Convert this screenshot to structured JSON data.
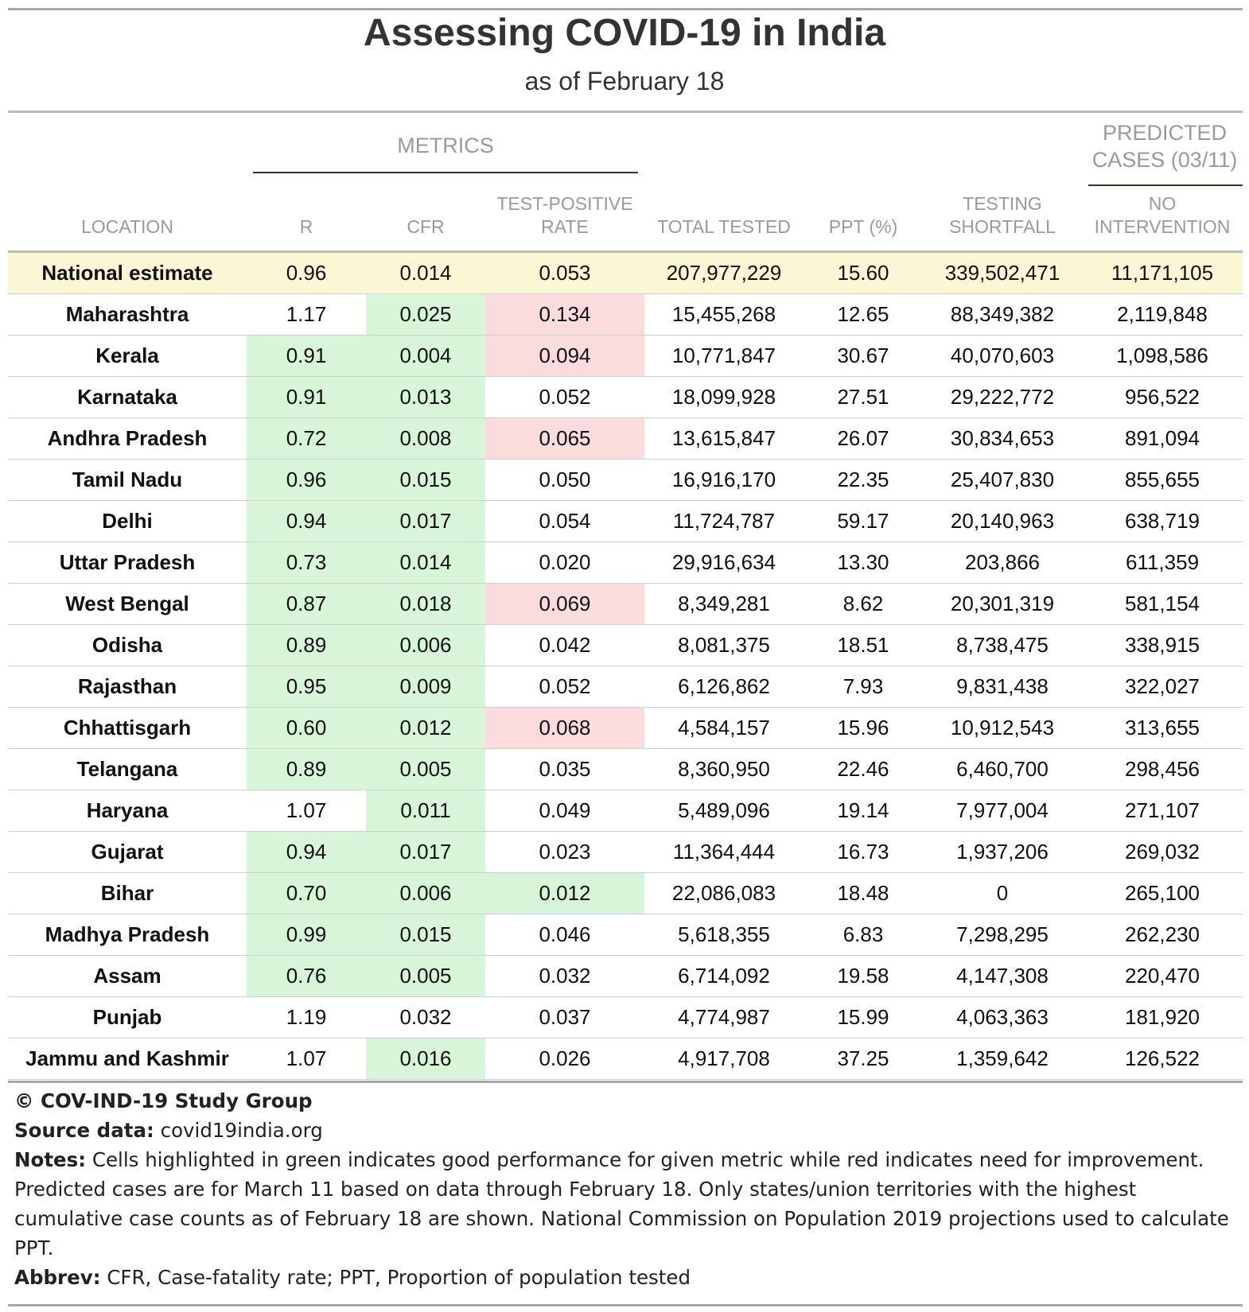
{
  "chart_data": {
    "type": "table",
    "title": "Assessing COVID-19 in India",
    "subtitle": "as of February 18",
    "column_groups": {
      "metrics": "METRICS",
      "predicted": "PREDICTED CASES (03/11)"
    },
    "columns": [
      "LOCATION",
      "R",
      "CFR",
      "TEST-POSITIVE RATE",
      "TOTAL TESTED",
      "PPT (%)",
      "TESTING SHORTFALL",
      "NO INTERVENTION"
    ],
    "rows": [
      {
        "location": "National estimate",
        "r": "0.96",
        "cfr": "0.014",
        "tpr": "0.053",
        "total_tested": "207,977,229",
        "ppt": "15.60",
        "shortfall": "339,502,471",
        "no_intervention": "11,171,105",
        "highlight": {
          "r": "",
          "cfr": "",
          "tpr": ""
        }
      },
      {
        "location": "Maharashtra",
        "r": "1.17",
        "cfr": "0.025",
        "tpr": "0.134",
        "total_tested": "15,455,268",
        "ppt": "12.65",
        "shortfall": "88,349,382",
        "no_intervention": "2,119,848",
        "highlight": {
          "r": "",
          "cfr": "good",
          "tpr": "bad"
        }
      },
      {
        "location": "Kerala",
        "r": "0.91",
        "cfr": "0.004",
        "tpr": "0.094",
        "total_tested": "10,771,847",
        "ppt": "30.67",
        "shortfall": "40,070,603",
        "no_intervention": "1,098,586",
        "highlight": {
          "r": "good",
          "cfr": "good",
          "tpr": "bad"
        }
      },
      {
        "location": "Karnataka",
        "r": "0.91",
        "cfr": "0.013",
        "tpr": "0.052",
        "total_tested": "18,099,928",
        "ppt": "27.51",
        "shortfall": "29,222,772",
        "no_intervention": "956,522",
        "highlight": {
          "r": "good",
          "cfr": "good",
          "tpr": ""
        }
      },
      {
        "location": "Andhra Pradesh",
        "r": "0.72",
        "cfr": "0.008",
        "tpr": "0.065",
        "total_tested": "13,615,847",
        "ppt": "26.07",
        "shortfall": "30,834,653",
        "no_intervention": "891,094",
        "highlight": {
          "r": "good",
          "cfr": "good",
          "tpr": "bad"
        }
      },
      {
        "location": "Tamil Nadu",
        "r": "0.96",
        "cfr": "0.015",
        "tpr": "0.050",
        "total_tested": "16,916,170",
        "ppt": "22.35",
        "shortfall": "25,407,830",
        "no_intervention": "855,655",
        "highlight": {
          "r": "good",
          "cfr": "good",
          "tpr": ""
        }
      },
      {
        "location": "Delhi",
        "r": "0.94",
        "cfr": "0.017",
        "tpr": "0.054",
        "total_tested": "11,724,787",
        "ppt": "59.17",
        "shortfall": "20,140,963",
        "no_intervention": "638,719",
        "highlight": {
          "r": "good",
          "cfr": "good",
          "tpr": ""
        }
      },
      {
        "location": "Uttar Pradesh",
        "r": "0.73",
        "cfr": "0.014",
        "tpr": "0.020",
        "total_tested": "29,916,634",
        "ppt": "13.30",
        "shortfall": "203,866",
        "no_intervention": "611,359",
        "highlight": {
          "r": "good",
          "cfr": "good",
          "tpr": ""
        }
      },
      {
        "location": "West Bengal",
        "r": "0.87",
        "cfr": "0.018",
        "tpr": "0.069",
        "total_tested": "8,349,281",
        "ppt": "8.62",
        "shortfall": "20,301,319",
        "no_intervention": "581,154",
        "highlight": {
          "r": "good",
          "cfr": "good",
          "tpr": "bad"
        }
      },
      {
        "location": "Odisha",
        "r": "0.89",
        "cfr": "0.006",
        "tpr": "0.042",
        "total_tested": "8,081,375",
        "ppt": "18.51",
        "shortfall": "8,738,475",
        "no_intervention": "338,915",
        "highlight": {
          "r": "good",
          "cfr": "good",
          "tpr": ""
        }
      },
      {
        "location": "Rajasthan",
        "r": "0.95",
        "cfr": "0.009",
        "tpr": "0.052",
        "total_tested": "6,126,862",
        "ppt": "7.93",
        "shortfall": "9,831,438",
        "no_intervention": "322,027",
        "highlight": {
          "r": "good",
          "cfr": "good",
          "tpr": ""
        }
      },
      {
        "location": "Chhattisgarh",
        "r": "0.60",
        "cfr": "0.012",
        "tpr": "0.068",
        "total_tested": "4,584,157",
        "ppt": "15.96",
        "shortfall": "10,912,543",
        "no_intervention": "313,655",
        "highlight": {
          "r": "good",
          "cfr": "good",
          "tpr": "bad"
        }
      },
      {
        "location": "Telangana",
        "r": "0.89",
        "cfr": "0.005",
        "tpr": "0.035",
        "total_tested": "8,360,950",
        "ppt": "22.46",
        "shortfall": "6,460,700",
        "no_intervention": "298,456",
        "highlight": {
          "r": "good",
          "cfr": "good",
          "tpr": ""
        }
      },
      {
        "location": "Haryana",
        "r": "1.07",
        "cfr": "0.011",
        "tpr": "0.049",
        "total_tested": "5,489,096",
        "ppt": "19.14",
        "shortfall": "7,977,004",
        "no_intervention": "271,107",
        "highlight": {
          "r": "",
          "cfr": "good",
          "tpr": ""
        }
      },
      {
        "location": "Gujarat",
        "r": "0.94",
        "cfr": "0.017",
        "tpr": "0.023",
        "total_tested": "11,364,444",
        "ppt": "16.73",
        "shortfall": "1,937,206",
        "no_intervention": "269,032",
        "highlight": {
          "r": "good",
          "cfr": "good",
          "tpr": ""
        }
      },
      {
        "location": "Bihar",
        "r": "0.70",
        "cfr": "0.006",
        "tpr": "0.012",
        "total_tested": "22,086,083",
        "ppt": "18.48",
        "shortfall": "0",
        "no_intervention": "265,100",
        "highlight": {
          "r": "good",
          "cfr": "good",
          "tpr": "good"
        }
      },
      {
        "location": "Madhya Pradesh",
        "r": "0.99",
        "cfr": "0.015",
        "tpr": "0.046",
        "total_tested": "5,618,355",
        "ppt": "6.83",
        "shortfall": "7,298,295",
        "no_intervention": "262,230",
        "highlight": {
          "r": "good",
          "cfr": "good",
          "tpr": ""
        }
      },
      {
        "location": "Assam",
        "r": "0.76",
        "cfr": "0.005",
        "tpr": "0.032",
        "total_tested": "6,714,092",
        "ppt": "19.58",
        "shortfall": "4,147,308",
        "no_intervention": "220,470",
        "highlight": {
          "r": "good",
          "cfr": "good",
          "tpr": ""
        }
      },
      {
        "location": "Punjab",
        "r": "1.19",
        "cfr": "0.032",
        "tpr": "0.037",
        "total_tested": "4,774,987",
        "ppt": "15.99",
        "shortfall": "4,063,363",
        "no_intervention": "181,920",
        "highlight": {
          "r": "",
          "cfr": "",
          "tpr": ""
        }
      },
      {
        "location": "Jammu and Kashmir",
        "r": "1.07",
        "cfr": "0.016",
        "tpr": "0.026",
        "total_tested": "4,917,708",
        "ppt": "37.25",
        "shortfall": "1,359,642",
        "no_intervention": "126,522",
        "highlight": {
          "r": "",
          "cfr": "good",
          "tpr": ""
        }
      }
    ],
    "highlight_colors": {
      "good": "#d9f5d9",
      "bad": "#fadcdc",
      "national": "#fbf6d4"
    }
  },
  "header_lines": {
    "predicted_line1": "PREDICTED",
    "predicted_line2": "CASES (03/11)",
    "tpr_line1": "TEST-POSITIVE",
    "tpr_line2": "RATE",
    "shortfall_line1": "TESTING",
    "shortfall_line2": "SHORTFALL",
    "nointerv_line1": "NO",
    "nointerv_line2": "INTERVENTION"
  },
  "footer": {
    "copyright": "© COV-IND-19 Study Group",
    "source_label": "Source data:",
    "source_value": "covid19india.org",
    "notes_label": "Notes:",
    "notes_text": "Cells highlighted in green indicates good performance for given metric while red indicates need for improvement. Predicted cases are for March 11 based on data through February 18. Only states/union territories with the highest cumulative case counts as of February 18 are shown. National Commission on Population 2019 projections used to calculate PPT.",
    "abbrev_label": "Abbrev:",
    "abbrev_text": "CFR, Case-fatality rate; PPT, Proportion of population tested"
  }
}
